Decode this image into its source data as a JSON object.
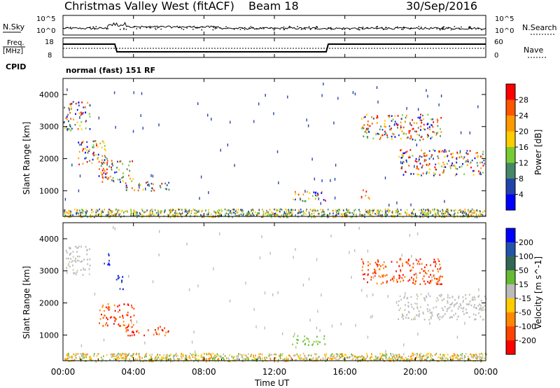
{
  "header": {
    "station": "Christmas Valley West (fitACF)",
    "beam": "Beam 18",
    "date": "30/Sep/2016"
  },
  "noise_panel": {
    "left_label": "N.Sky",
    "right_label": "N.Search",
    "left_ticks": [
      "10^5",
      "10^0"
    ],
    "right_ticks": [
      "10^5",
      "10^0"
    ]
  },
  "freq_panel": {
    "left_label_1": "Freq.",
    "left_label_2": "[MHz]",
    "right_label": "Nave",
    "left_ticks": [
      "18",
      "8"
    ],
    "right_ticks": [
      "60",
      "0"
    ],
    "cpid_label": "CPID",
    "cpid_text": "normal (fast) 151 RF"
  },
  "chart_data": [
    {
      "type": "heatmap",
      "name": "Power",
      "ylabel": "Slant Range [km]",
      "yticks": [
        1000,
        2000,
        3000,
        4000
      ],
      "ylim": [
        200,
        4500
      ],
      "colorbar_label": "Power [dB]",
      "colorbar_ticks": [
        "28",
        "24",
        "20",
        "16",
        "12",
        "8",
        "4"
      ],
      "colorbar_colors": [
        "#ff0000",
        "#ff5500",
        "#ff9900",
        "#ffcc00",
        "#77cc33",
        "#448866",
        "#2244aa",
        "#0000ff"
      ],
      "scatter_patches": [
        {
          "t0": 0.0,
          "t1": 1.5,
          "r0": 2900,
          "r1": 3800,
          "class": "mixed"
        },
        {
          "t0": 0.8,
          "t1": 2.5,
          "r0": 1800,
          "r1": 2600,
          "class": "mixed"
        },
        {
          "t0": 2.0,
          "t1": 4.0,
          "r0": 1300,
          "r1": 2000,
          "class": "mixed"
        },
        {
          "t0": 3.5,
          "t1": 6.0,
          "r0": 1000,
          "r1": 1300,
          "class": "mixed"
        },
        {
          "t0": 13.0,
          "t1": 15.0,
          "r0": 700,
          "r1": 1000,
          "class": "mixed"
        },
        {
          "t0": 16.9,
          "t1": 17.4,
          "r0": 750,
          "r1": 1050,
          "class": "strong"
        },
        {
          "t0": 16.9,
          "t1": 21.5,
          "r0": 2600,
          "r1": 3400,
          "class": "mixed"
        },
        {
          "t0": 19.0,
          "t1": 24.0,
          "r0": 1500,
          "r1": 2300,
          "class": "mixed"
        }
      ]
    },
    {
      "type": "heatmap",
      "name": "Velocity",
      "ylabel": "Slant Range [km]",
      "yticks": [
        1000,
        2000,
        3000,
        4000
      ],
      "ylim": [
        200,
        4500
      ],
      "colorbar_label": "Velocity [m s^-1]",
      "colorbar_ticks": [
        "200",
        "100",
        "50",
        "15",
        "-15",
        "-50",
        "-100",
        "-200"
      ],
      "colorbar_colors": [
        "#0000ff",
        "#2255aa",
        "#336655",
        "#66bb33",
        "#bbbbbb",
        "#ffcc00",
        "#ff8800",
        "#ff4400",
        "#ff0000"
      ],
      "scatter_patches": [
        {
          "t0": 0.0,
          "t1": 1.5,
          "r0": 2900,
          "r1": 3800,
          "class": "ground"
        },
        {
          "t0": 2.3,
          "t1": 2.7,
          "r0": 3200,
          "r1": 3600,
          "class": "toward"
        },
        {
          "t0": 3.0,
          "t1": 3.4,
          "r0": 2400,
          "r1": 2900,
          "class": "toward"
        },
        {
          "t0": 2.0,
          "t1": 4.0,
          "r0": 1300,
          "r1": 2000,
          "class": "away"
        },
        {
          "t0": 3.5,
          "t1": 6.0,
          "r0": 1000,
          "r1": 1300,
          "class": "away"
        },
        {
          "t0": 13.0,
          "t1": 15.0,
          "r0": 700,
          "r1": 1000,
          "class": "slow"
        },
        {
          "t0": 16.9,
          "t1": 21.5,
          "r0": 2600,
          "r1": 3400,
          "class": "away"
        },
        {
          "t0": 19.0,
          "t1": 24.0,
          "r0": 1500,
          "r1": 2300,
          "class": "ground"
        }
      ]
    }
  ],
  "time_axis": {
    "xlabel": "Time UT",
    "ticks": [
      "00:00",
      "04:00",
      "08:00",
      "12:00",
      "16:00",
      "20:00",
      "00:00"
    ],
    "xlim": [
      0,
      24
    ]
  }
}
